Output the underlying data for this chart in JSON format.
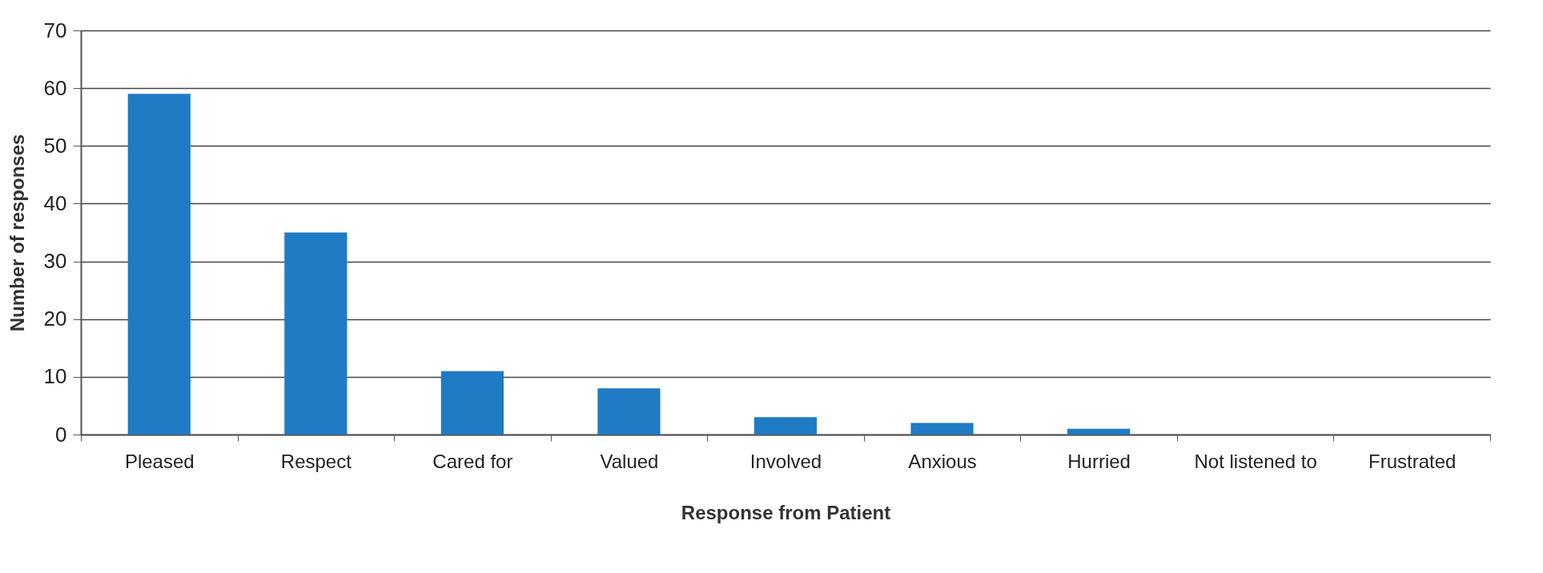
{
  "chart_data": {
    "type": "bar",
    "xlabel": "Response from Patient",
    "ylabel": "Number of responses",
    "categories": [
      "Pleased",
      "Respect",
      "Cared for",
      "Valued",
      "Involved",
      "Anxious",
      "Hurried",
      "Not listened to",
      "Frustrated"
    ],
    "values": [
      59,
      35,
      11,
      8,
      3,
      2,
      1,
      0,
      0
    ],
    "color": "#1f7bc4",
    "ylim": [
      0,
      70
    ],
    "yticks": [
      0,
      10,
      20,
      30,
      40,
      50,
      60,
      70
    ],
    "grid": "y"
  }
}
